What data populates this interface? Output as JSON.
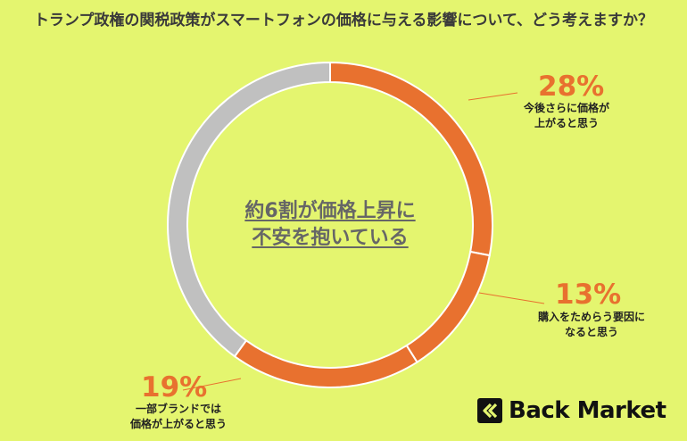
{
  "title": "トランプ政権の関税政策がスマートフォンの価格に与える影響について、どう考えますか？",
  "center_label": {
    "line1": "約6割が価格上昇に",
    "line2": "不安を抱いている"
  },
  "brand": {
    "name": "Back Market"
  },
  "colors": {
    "accent": "#e8712f",
    "rest": "#c0c0c0",
    "background": "#e4f56f",
    "leader": "#e8712f"
  },
  "chart_data": {
    "type": "pie",
    "donut": true,
    "slices": [
      {
        "percent": 28,
        "label_line1": "今後さらに価格が",
        "label_line2": "上がると思う",
        "color": "#e8712f"
      },
      {
        "percent": 13,
        "label_line1": "購入をためらう要因に",
        "label_line2": "なると思う",
        "color": "#e8712f"
      },
      {
        "percent": 19,
        "label_line1": "一部ブランドでは",
        "label_line2": "価格が上がると思う",
        "color": "#e8712f"
      },
      {
        "percent": 40,
        "color": "#c0c0c0"
      }
    ]
  }
}
